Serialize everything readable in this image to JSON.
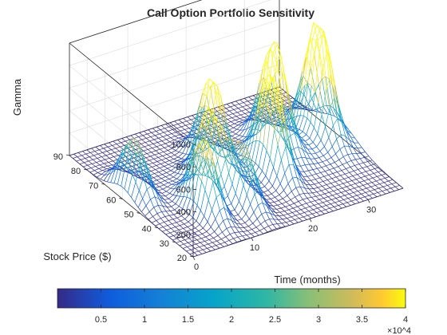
{
  "chart_data": {
    "type": "surface",
    "title": "Call Option Portfolio Sensitivity",
    "zlabel": "Gamma",
    "ylabel": "Stock Price ($)",
    "xlabel": "Time (months)",
    "x_range": [
      0,
      36
    ],
    "y_range": [
      20,
      90
    ],
    "z_range": [
      0,
      1000
    ],
    "x_ticks": [
      "0",
      "10",
      "20",
      "30"
    ],
    "y_ticks": [
      "20",
      "30",
      "40",
      "50",
      "60",
      "70",
      "80",
      "90"
    ],
    "z_ticks": [
      "200",
      "400",
      "600",
      "800",
      "1000"
    ],
    "colormap": "parula",
    "colorbar": {
      "range": [
        0,
        40000
      ],
      "ticks": [
        "0.5",
        "1",
        "1.5",
        "2",
        "2.5",
        "3",
        "3.5",
        "4"
      ],
      "exponent": "×10^4"
    },
    "grid": true,
    "peaks": [
      {
        "time": 2,
        "stock_price": 60,
        "gamma": 500
      },
      {
        "time": 8,
        "stock_price": 40,
        "gamma": 650
      },
      {
        "time": 12,
        "stock_price": 50,
        "gamma": 680
      },
      {
        "time": 14,
        "stock_price": 38,
        "gamma": 520
      },
      {
        "time": 16,
        "stock_price": 62,
        "gamma": 750
      },
      {
        "time": 22,
        "stock_price": 48,
        "gamma": 850
      },
      {
        "time": 26,
        "stock_price": 60,
        "gamma": 900
      },
      {
        "time": 33,
        "stock_price": 58,
        "gamma": 1000
      }
    ]
  }
}
